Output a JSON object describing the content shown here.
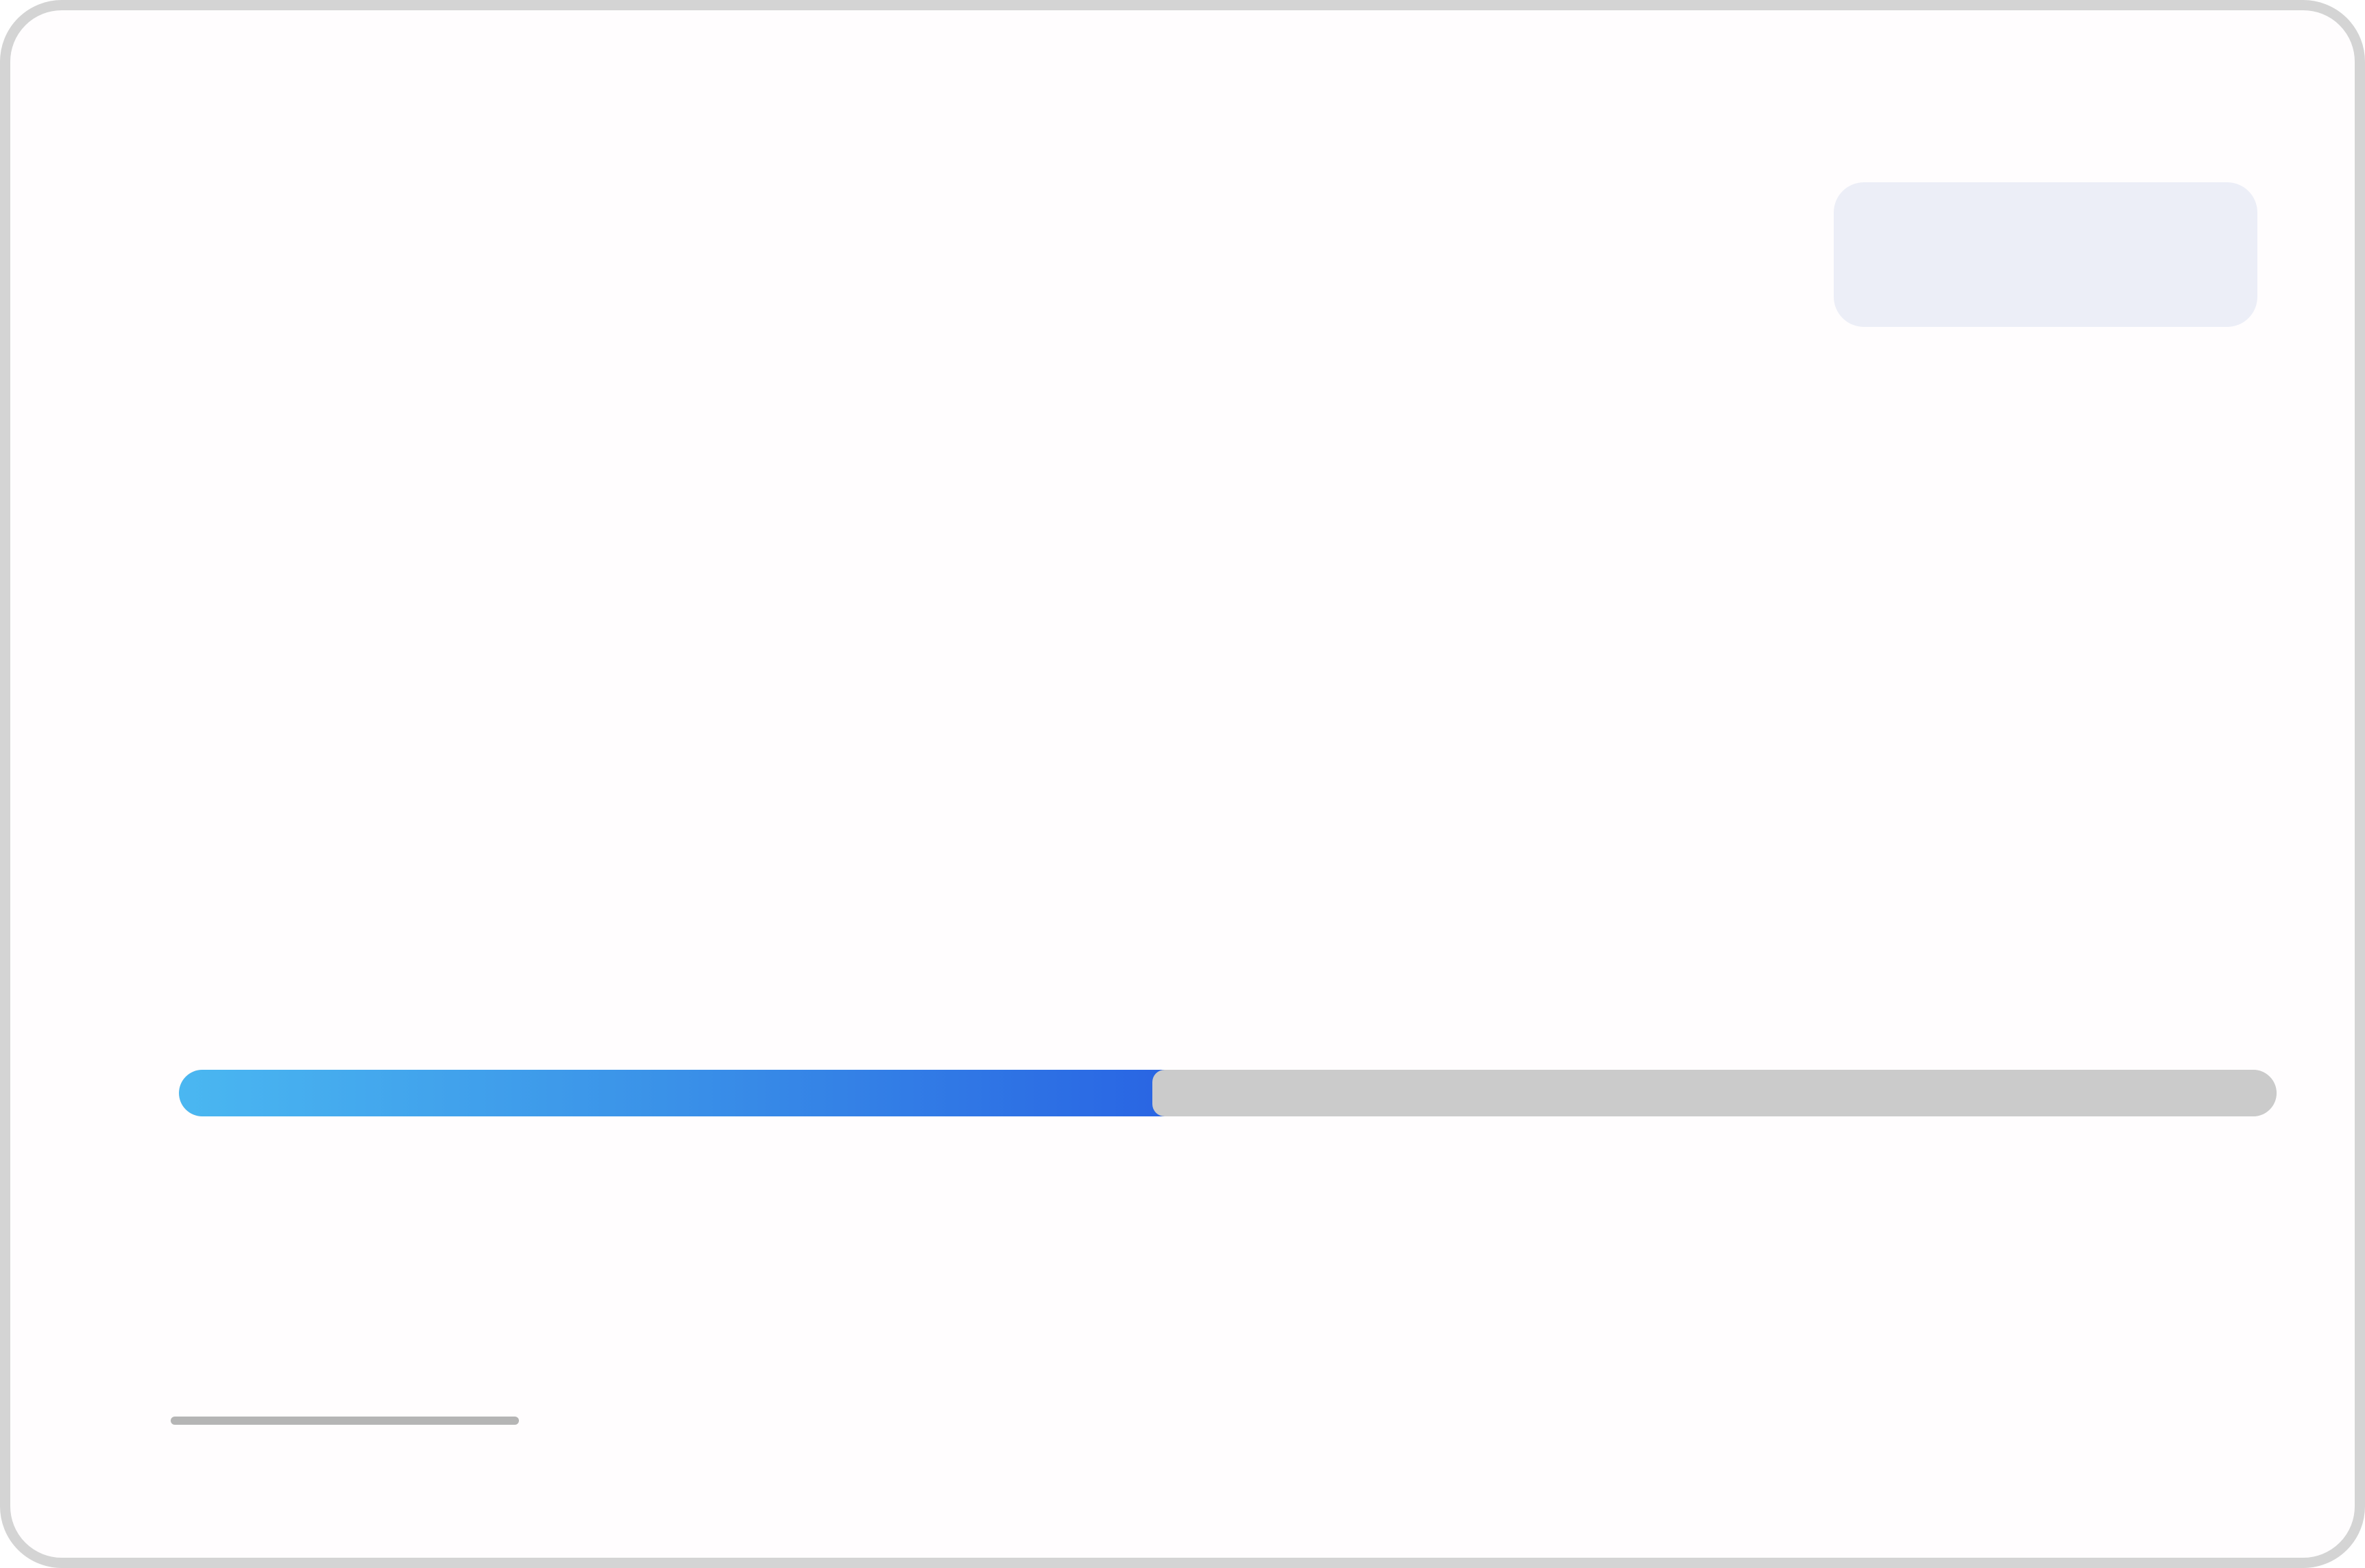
{
  "progress": {
    "value_fraction": 0.47,
    "fill_gradient": [
      "#4ab7f1",
      "#2965e3"
    ],
    "track_color": "#cbcbcb"
  },
  "colors": {
    "card_border": "#d4d4d4",
    "badge_placeholder": "#eceef7",
    "text_placeholder": "#b5b5b5"
  }
}
